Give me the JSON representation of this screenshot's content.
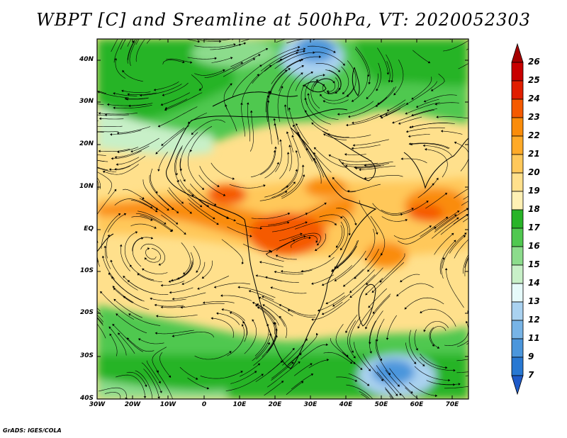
{
  "title": "WBPT [C] and Sreamline at 500hPa, VT: 2020052303",
  "credit": "GrADS: IGES/COLA",
  "lat_ticks": [
    "40N",
    "30N",
    "20N",
    "10N",
    "EQ",
    "10S",
    "20S",
    "30S",
    "40S"
  ],
  "lon_ticks": [
    "30W",
    "20W",
    "10W",
    "0",
    "10E",
    "20E",
    "30E",
    "40E",
    "50E",
    "60E",
    "70E"
  ],
  "colorbar": {
    "labels": [
      "26",
      "25",
      "24",
      "23",
      "22",
      "21",
      "20",
      "19",
      "18",
      "17",
      "16",
      "15",
      "14",
      "13",
      "12",
      "11",
      "9",
      "7"
    ],
    "colors": [
      "#a50000",
      "#c80000",
      "#e11e00",
      "#f55a00",
      "#fa8c0a",
      "#ffaa28",
      "#ffc85a",
      "#ffe08c",
      "#fff0b4",
      "#28b428",
      "#50c850",
      "#8cdc8c",
      "#c8f0c8",
      "#e6fafa",
      "#aad2f0",
      "#78b4e6",
      "#4b96dc",
      "#2878d2",
      "#1e5ac8"
    ]
  },
  "map_extent": {
    "lon": [
      -30,
      75
    ],
    "lat": [
      -40,
      45
    ]
  }
}
